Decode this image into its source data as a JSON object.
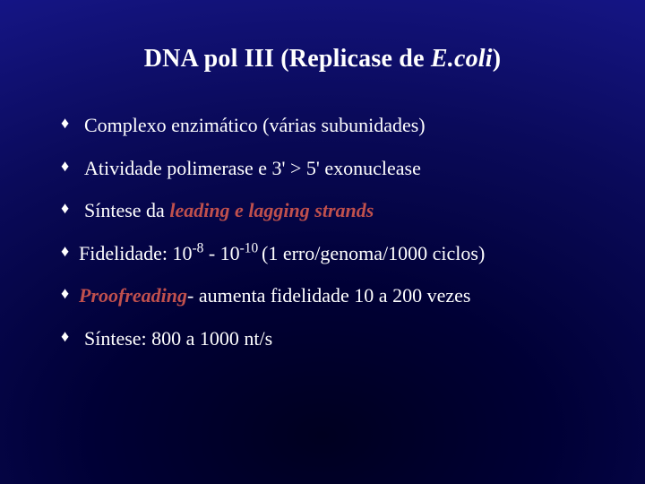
{
  "title": {
    "prefix": "DNA pol  III (Replicase de ",
    "italic": "E.coli",
    "suffix": ")"
  },
  "bullets": [
    {
      "text": "Complexo enzimático (várias subunidades)",
      "tight": false
    },
    {
      "text": "Atividade polimerase e 3' > 5' exonuclease",
      "tight": false
    },
    {
      "parts": [
        {
          "t": "Síntese da "
        },
        {
          "t": "leading e lagging strands",
          "cls": "italic-red"
        }
      ],
      "tight": false
    },
    {
      "parts": [
        {
          "t": "Fidelidade: 10"
        },
        {
          "t": "-8",
          "cls": "sup"
        },
        {
          "t": " - 10"
        },
        {
          "t": "-10 ",
          "cls": "sup"
        },
        {
          "t": "(1 erro/genoma/1000 ciclos)"
        }
      ],
      "tight": true
    },
    {
      "parts": [
        {
          "t": "Proofreading",
          "cls": "italic-red"
        },
        {
          "t": "- aumenta fidelidade 10 a 200 vezes"
        }
      ],
      "tight": true
    },
    {
      "text": "Síntese: 800 a 1000 nt/s",
      "tight": false
    }
  ],
  "colors": {
    "text": "#ffffff",
    "accent": "#c0504d",
    "bg_inner": "#000020",
    "bg_outer": "#1818a0"
  },
  "typography": {
    "title_fontsize": 28,
    "body_fontsize": 22,
    "font_family": "Times New Roman"
  }
}
